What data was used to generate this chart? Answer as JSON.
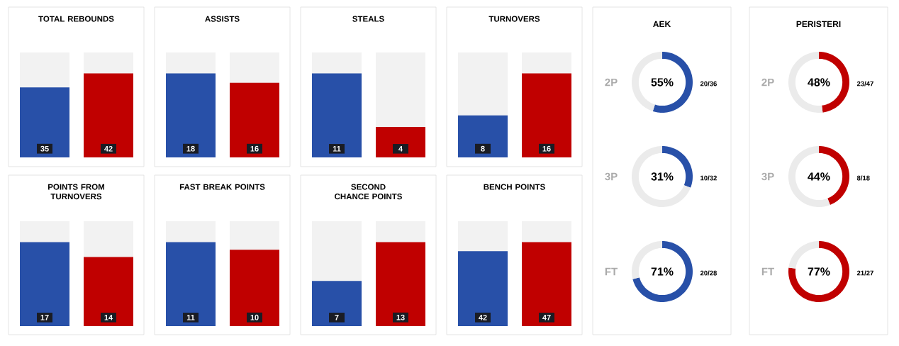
{
  "chart_data": [
    {
      "type": "bar",
      "title": "TOTAL REBOUNDS",
      "categories": [
        null,
        null
      ],
      "values": [
        35,
        42
      ],
      "colors": [
        "#2850a8",
        "#c00000"
      ],
      "data_labels": true
    },
    {
      "type": "bar",
      "title": "ASSISTS",
      "categories": [
        null,
        null
      ],
      "values": [
        18,
        16
      ],
      "colors": [
        "#2850a8",
        "#c00000"
      ],
      "data_labels": true
    },
    {
      "type": "bar",
      "title": "STEALS",
      "categories": [
        null,
        null
      ],
      "values": [
        11,
        4
      ],
      "colors": [
        "#2850a8",
        "#c00000"
      ],
      "data_labels": true
    },
    {
      "type": "bar",
      "title": "TURNOVERS",
      "categories": [
        null,
        null
      ],
      "values": [
        8,
        16
      ],
      "colors": [
        "#2850a8",
        "#c00000"
      ],
      "data_labels": true
    },
    {
      "type": "bar",
      "title": "POINTS FROM TURNOVERS",
      "categories": [
        null,
        null
      ],
      "values": [
        17,
        14
      ],
      "colors": [
        "#2850a8",
        "#c00000"
      ],
      "data_labels": true
    },
    {
      "type": "bar",
      "title": "FAST BREAK POINTS",
      "categories": [
        null,
        null
      ],
      "values": [
        11,
        10
      ],
      "colors": [
        "#2850a8",
        "#c00000"
      ],
      "data_labels": true
    },
    {
      "type": "bar",
      "title": "SECOND CHANCE POINTS",
      "categories": [
        null,
        null
      ],
      "values": [
        7,
        13
      ],
      "colors": [
        "#2850a8",
        "#c00000"
      ],
      "data_labels": true
    },
    {
      "type": "bar",
      "title": "BENCH POINTS",
      "categories": [
        null,
        null
      ],
      "values": [
        42,
        47
      ],
      "colors": [
        "#2850a8",
        "#c00000"
      ],
      "data_labels": true
    },
    {
      "type": "donut",
      "title": "AEK",
      "ylabel": "2P",
      "categories": [
        null,
        null
      ],
      "values": [
        55,
        45
      ],
      "colors": [
        "#2850a8",
        "#ebebeb"
      ],
      "annotations": [
        "55%",
        "20/36"
      ]
    },
    {
      "type": "donut",
      "ylabel": "3P",
      "categories": [
        null,
        null
      ],
      "values": [
        31,
        69
      ],
      "colors": [
        "#2850a8",
        "#ebebeb"
      ],
      "annotations": [
        "31%",
        "10/32"
      ]
    },
    {
      "type": "donut",
      "ylabel": "FT",
      "categories": [
        null,
        null
      ],
      "values": [
        71,
        29
      ],
      "colors": [
        "#2850a8",
        "#ebebeb"
      ],
      "annotations": [
        "71%",
        "20/28"
      ]
    },
    {
      "type": "donut",
      "title": "PERISTERI",
      "ylabel": "2P",
      "categories": [
        null,
        null
      ],
      "values": [
        48,
        52
      ],
      "colors": [
        "#c00000",
        "#ebebeb"
      ],
      "annotations": [
        "48%",
        "23/47"
      ]
    },
    {
      "type": "donut",
      "ylabel": "3P",
      "categories": [
        null,
        null
      ],
      "values": [
        44,
        56
      ],
      "colors": [
        "#c00000",
        "#ebebeb"
      ],
      "annotations": [
        "44%",
        "8/18"
      ]
    },
    {
      "type": "donut",
      "ylabel": "FT",
      "categories": [
        null,
        null
      ],
      "values": [
        77,
        23
      ],
      "colors": [
        "#c00000",
        "#ebebeb"
      ],
      "annotations": [
        "77%",
        "21/27"
      ]
    }
  ]
}
